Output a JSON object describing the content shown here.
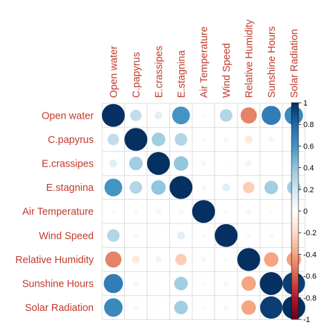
{
  "chart_data": {
    "type": "heatmap",
    "variables": [
      "Open water",
      "C.papyrus",
      "E.crassipes",
      "E.stagnina",
      "Air Temperature",
      "Wind Speed",
      "Relative Humidity",
      "Sunshine Hours",
      "Solar Radiation"
    ],
    "matrix": [
      [
        1.0,
        0.25,
        0.12,
        0.6,
        0.03,
        0.3,
        -0.5,
        0.7,
        0.65
      ],
      [
        0.25,
        1.0,
        0.35,
        0.3,
        0.04,
        0.05,
        -0.12,
        0.06,
        0.05
      ],
      [
        0.12,
        0.35,
        1.0,
        0.4,
        0.06,
        0.02,
        -0.08,
        0.02,
        0.02
      ],
      [
        0.6,
        0.3,
        0.4,
        1.0,
        0.05,
        0.12,
        -0.25,
        0.35,
        0.35
      ],
      [
        0.03,
        0.04,
        0.06,
        0.05,
        1.0,
        0.04,
        0.06,
        0.03,
        0.03
      ],
      [
        0.3,
        0.05,
        0.02,
        0.12,
        0.04,
        1.0,
        0.04,
        0.05,
        0.05
      ],
      [
        -0.5,
        -0.12,
        -0.08,
        -0.25,
        0.06,
        0.04,
        1.0,
        -0.4,
        -0.4
      ],
      [
        0.7,
        0.06,
        0.02,
        0.35,
        0.03,
        0.05,
        -0.4,
        1.0,
        0.95
      ],
      [
        0.65,
        0.05,
        0.02,
        0.35,
        0.03,
        0.05,
        -0.4,
        0.95,
        1.0
      ]
    ],
    "colorbar_ticks": [
      "1",
      "0.8",
      "0.6",
      "0.4",
      "0.2",
      "0",
      "-0.2",
      "-0.4",
      "-0.6",
      "-0.8",
      "-1"
    ],
    "colorbar_range": [
      -1,
      1
    ],
    "colors": {
      "positive": "#053061",
      "neutral": "#ffffff",
      "negative": "#67001f",
      "label": "#c0392b"
    }
  }
}
